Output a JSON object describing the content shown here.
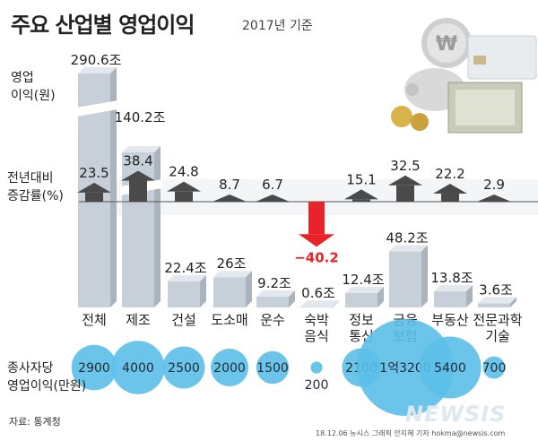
{
  "header": {
    "title": "주요 산업별 영업이익",
    "year": "2017년 기준"
  },
  "labels": {
    "profit": "영업",
    "profit2": "이익(원)",
    "change": "전년대비",
    "change2": "증감률(%)",
    "avg": "종사자당",
    "avg2": "영업이익(만원)"
  },
  "source": "자료: 통계청",
  "credit": "18.12.06 뉴시스 그래픽 안지혜 기자 hokma@newsis.com",
  "logo": "NEWSIS",
  "colors": {
    "bar": "#c7d0d8",
    "bar_top": "#e3e8ec",
    "arrow": "#4a4a4a",
    "arrow_neg": "#e8232a",
    "bubble": "#5bbfe8"
  },
  "chart_data": {
    "type": "bar",
    "categories": [
      "전체",
      "제조",
      "건설",
      "도소매",
      "운수",
      "숙박\n음식",
      "정보\n통신",
      "금융\n보험",
      "부동산",
      "전문과학\n기술"
    ],
    "series": [
      {
        "values_label": [
          "290.6조",
          "140.2조",
          "22.4조",
          "26조",
          "9.2조",
          "0.6조",
          "12.4조",
          "48.2조",
          "13.8조",
          "3.6조"
        ],
        "values": [
          290.6,
          140.2,
          22.4,
          26,
          9.2,
          0.6,
          12.4,
          48.2,
          13.8,
          3.6
        ]
      },
      {
        "values_label": [
          "23.5",
          "38.4",
          "24.8",
          "8.7",
          "6.7",
          "−40.2",
          "15.1",
          "32.5",
          "22.2",
          "2.9"
        ],
        "values": [
          23.5,
          38.4,
          24.8,
          8.7,
          6.7,
          -40.2,
          15.1,
          32.5,
          22.2,
          2.9
        ]
      },
      {
        "values_label": [
          "2900",
          "4000",
          "2500",
          "2000",
          "1500",
          "200",
          "2100",
          "1억3200",
          "5400",
          "700"
        ],
        "values": [
          2900,
          4000,
          2500,
          2000,
          1500,
          200,
          2100,
          13200,
          5400,
          700
        ]
      }
    ]
  }
}
